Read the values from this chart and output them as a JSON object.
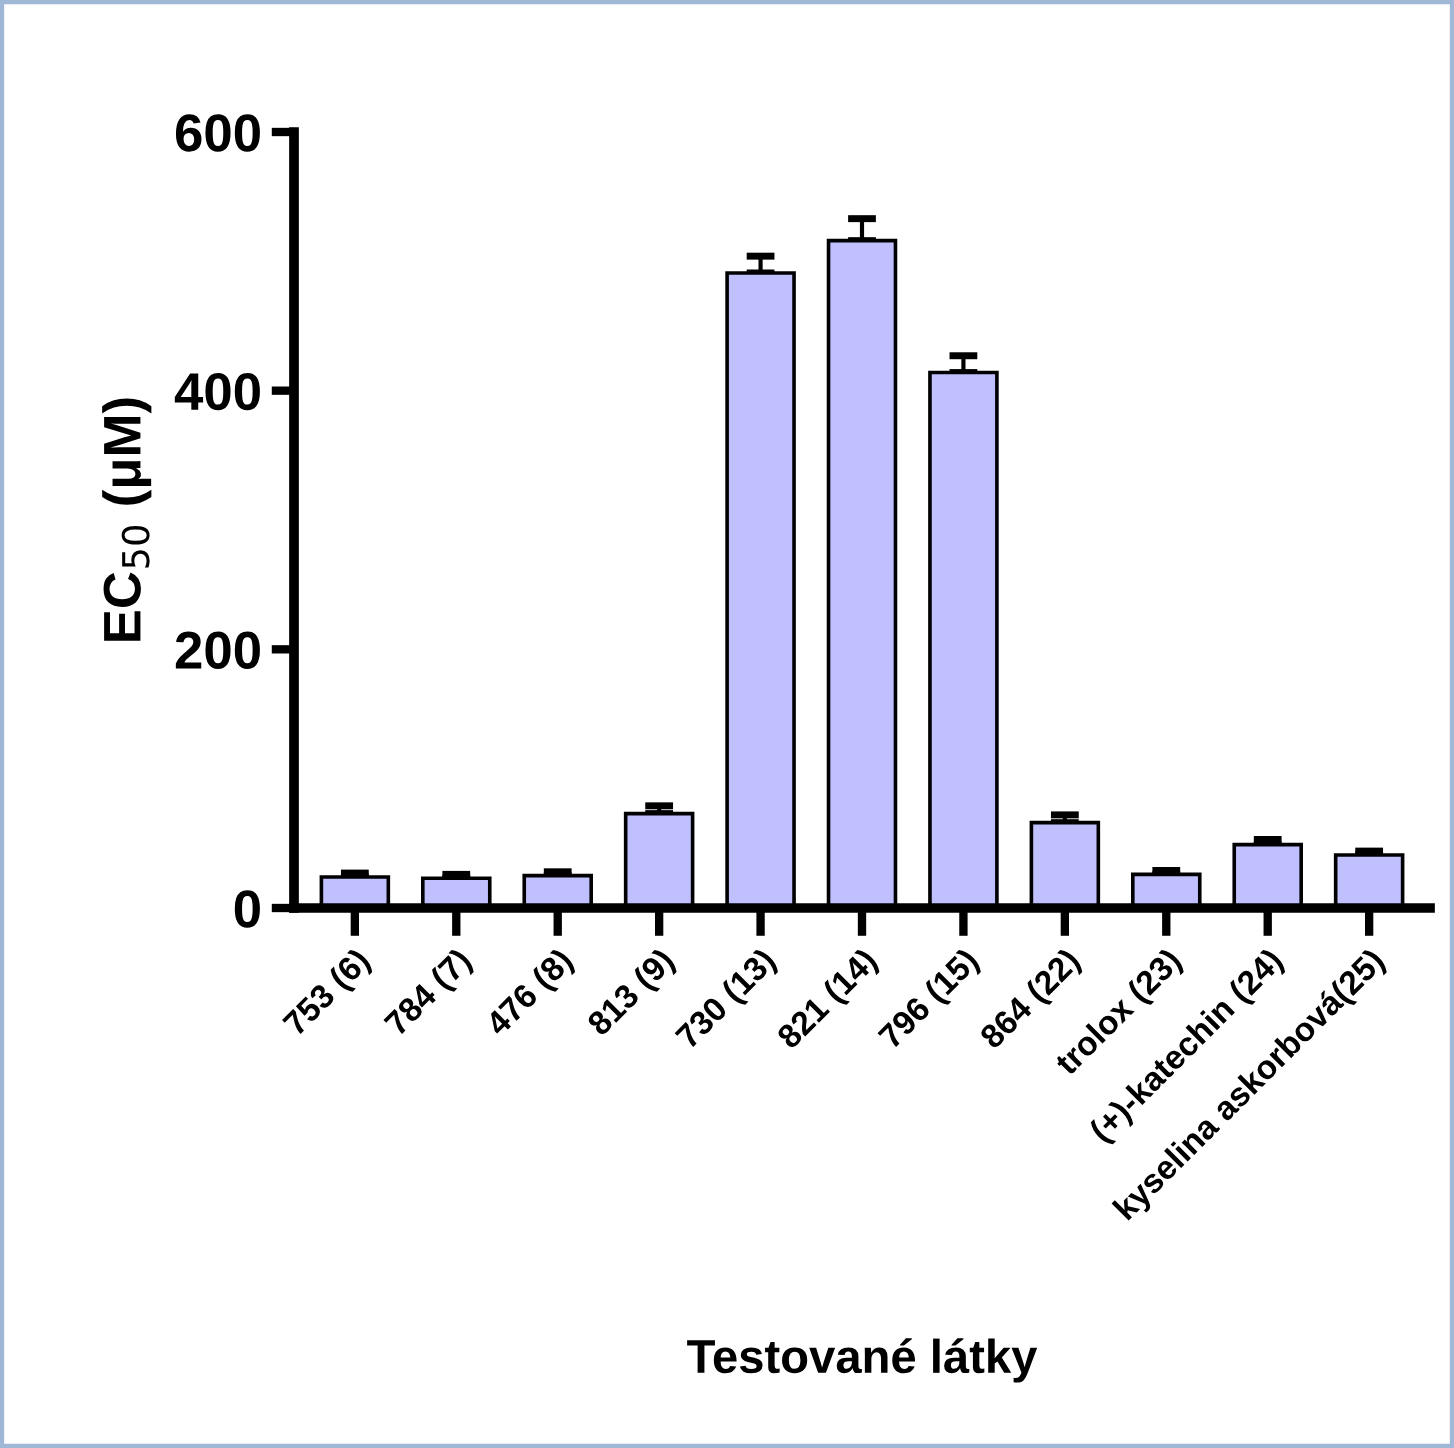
{
  "chart_data": {
    "type": "bar",
    "xlabel": "Testované látky",
    "ylabel": "EC$_{50}$ (μM)",
    "categories": [
      "753 (6)",
      "784 (7)",
      "476 (8)",
      "813 (9)",
      "730 (13)",
      "821 (14)",
      "796 (15)",
      "864 (22)",
      "trolox (23)",
      "(+)-katechin (24)",
      "kyselina askorbová(25)"
    ],
    "values": [
      24,
      23,
      25,
      73,
      491,
      516,
      414,
      66,
      26,
      49,
      41
    ],
    "errors": [
      3,
      3,
      3,
      6,
      13,
      17,
      13,
      6,
      3,
      4,
      3
    ],
    "color": "#c0c0ff",
    "ylim": [
      0,
      600
    ],
    "yticks": [
      0,
      200,
      400,
      600
    ],
    "grid": false
  }
}
